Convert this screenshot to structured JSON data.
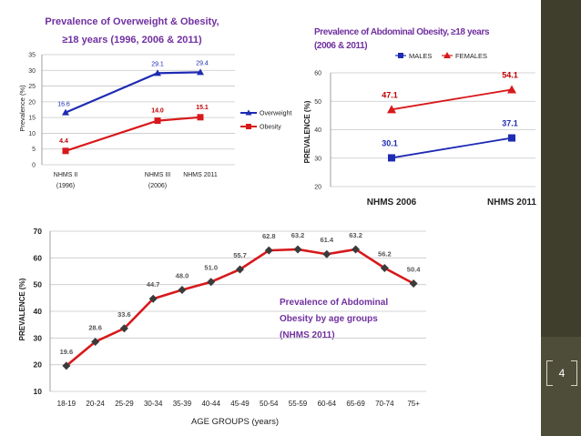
{
  "page_number": "4",
  "colors": {
    "blue": "#1f2bb3",
    "red": "#d7191c",
    "dark_red": "#c00000",
    "title_purple": "#7030a0",
    "marker_dark": "#3b3b3b"
  },
  "chart_data": [
    {
      "type": "line",
      "title": "Prevalence of Overweight & Obesity,",
      "subtitle": "≥18 years (1996, 2006 & 2011)",
      "ylabel": "Prevalence (%)",
      "xlabel": "",
      "ylim": [
        0,
        35
      ],
      "yticks": [
        "0",
        "5",
        "10",
        "15",
        "20",
        "25",
        "30",
        "35"
      ],
      "categories": [
        {
          "line1": "NHMS II",
          "line2": "(1996)"
        },
        {
          "line1": "NHMS III",
          "line2": "(2006)"
        },
        {
          "line1": "NHMS 2011",
          "line2": ""
        }
      ],
      "series": [
        {
          "name": "Overweight",
          "values": [
            16.6,
            29.1,
            29.4
          ],
          "labels": [
            "16.6",
            "29.1",
            "29.4"
          ],
          "color": "#1f2bb3"
        },
        {
          "name": "Obesity",
          "values": [
            4.4,
            14.0,
            15.1
          ],
          "labels": [
            "4.4",
            "14.0",
            "15.1"
          ],
          "color": "#d7191c"
        }
      ],
      "legend": "right",
      "grid": true
    },
    {
      "type": "line",
      "title": "Prevalence of Abdominal Obesity, ≥18 years",
      "subtitle": "(2006 & 2011)",
      "ylabel": "PREVALENCE (%)",
      "xlabel": "",
      "ylim": [
        20,
        60
      ],
      "yticks": [
        "20",
        "30",
        "40",
        "50",
        "60"
      ],
      "categories": [
        "NHMS 2006",
        "NHMS 2011"
      ],
      "series": [
        {
          "name": "MALES",
          "values": [
            30.1,
            37.1
          ],
          "labels": [
            "30.1",
            "37.1"
          ],
          "color": "#1f2bb3"
        },
        {
          "name": "FEMALES",
          "values": [
            47.1,
            54.1
          ],
          "labels": [
            "47.1",
            "54.1"
          ],
          "color": "#d7191c"
        }
      ],
      "legend": "top",
      "grid": true
    },
    {
      "type": "line",
      "title": "",
      "annotation": [
        "Prevalence of Abdominal",
        "Obesity by age groups",
        "(NHMS 2011)"
      ],
      "ylabel": "PREVALENCE (%)",
      "xlabel": "AGE GROUPS (years)",
      "ylim": [
        10,
        70
      ],
      "yticks": [
        "10",
        "20",
        "30",
        "40",
        "50",
        "60",
        "70"
      ],
      "categories": [
        "18-19",
        "20-24",
        "25-29",
        "30-34",
        "35-39",
        "40-44",
        "45-49",
        "50-54",
        "55-59",
        "60-64",
        "65-69",
        "70-74",
        "75+"
      ],
      "series": [
        {
          "name": "Abdominal obesity",
          "values": [
            19.6,
            28.6,
            33.6,
            44.7,
            48.0,
            51.0,
            55.7,
            62.8,
            63.2,
            61.4,
            63.2,
            56.2,
            50.4
          ],
          "labels": [
            "19.6",
            "28.6",
            "33.6",
            "44.7",
            "48.0",
            "51.0",
            "55.7",
            "62.8",
            "63.2",
            "61.4",
            "63.2",
            "56.2",
            "50.4"
          ],
          "color": "#d7191c"
        }
      ],
      "grid": true
    }
  ]
}
